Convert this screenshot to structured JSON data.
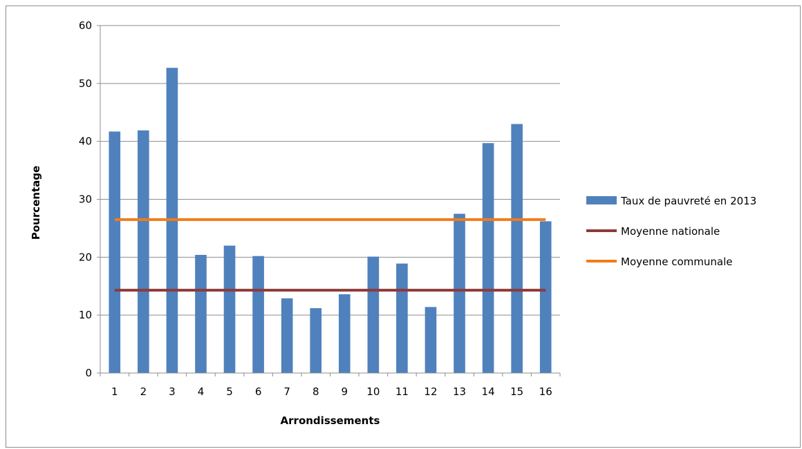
{
  "chart_data": {
    "type": "bar",
    "xlabel": "Arrondissements",
    "ylabel": "Pourcentage",
    "ylim": [
      0,
      60
    ],
    "yticks": [
      0,
      10,
      20,
      30,
      40,
      50,
      60
    ],
    "grid": true,
    "legend_position": "right",
    "categories": [
      "1",
      "2",
      "3",
      "4",
      "5",
      "6",
      "7",
      "8",
      "9",
      "10",
      "11",
      "12",
      "13",
      "14",
      "15",
      "16"
    ],
    "series": [
      {
        "name": "Taux de pauvreté en 2013",
        "type": "bar",
        "color": "#4f81bd",
        "values": [
          41.7,
          41.9,
          52.7,
          20.4,
          22.0,
          20.2,
          12.9,
          11.2,
          13.6,
          20.1,
          18.9,
          11.4,
          27.5,
          39.7,
          43.0,
          26.2
        ]
      },
      {
        "name": "Moyenne nationale",
        "type": "line",
        "color": "#8e3a3a",
        "values": [
          14.3,
          14.3,
          14.3,
          14.3,
          14.3,
          14.3,
          14.3,
          14.3,
          14.3,
          14.3,
          14.3,
          14.3,
          14.3,
          14.3,
          14.3,
          14.3
        ]
      },
      {
        "name": "Moyenne communale",
        "type": "line",
        "color": "#f07c1a",
        "values": [
          26.5,
          26.5,
          26.5,
          26.5,
          26.5,
          26.5,
          26.5,
          26.5,
          26.5,
          26.5,
          26.5,
          26.5,
          26.5,
          26.5,
          26.5,
          26.5
        ]
      }
    ]
  }
}
